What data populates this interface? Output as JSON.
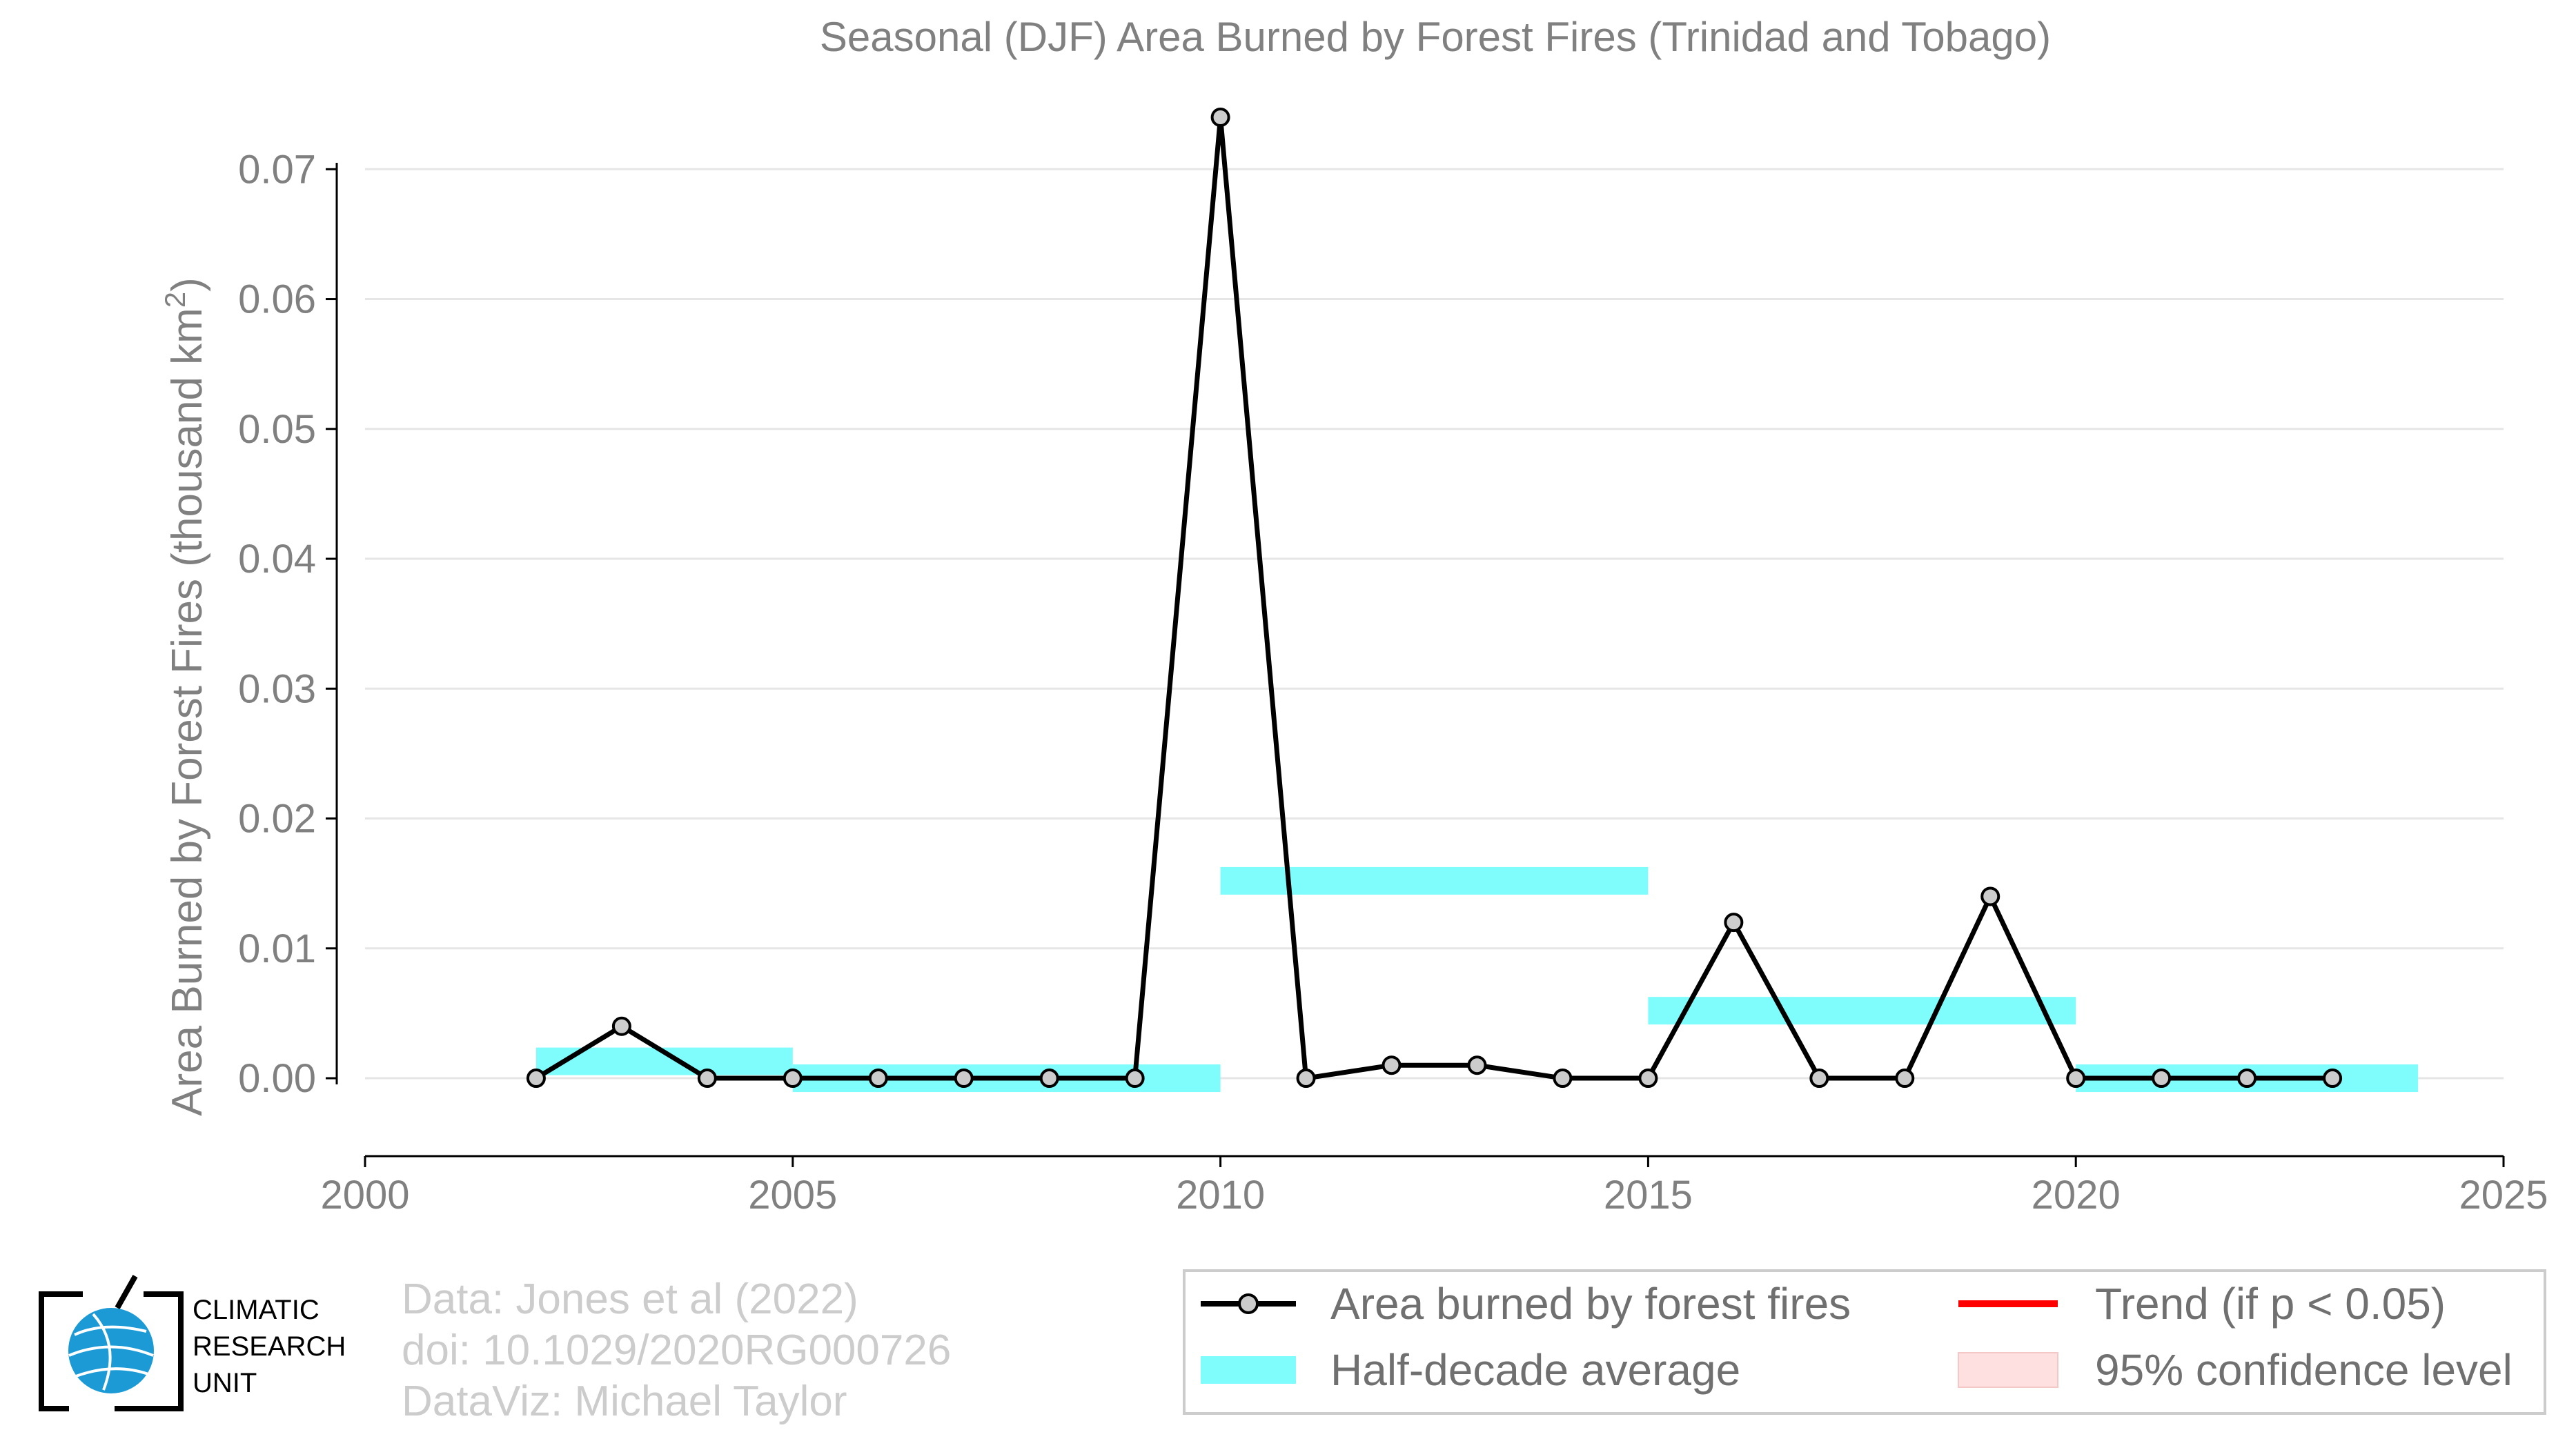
{
  "chart_data": {
    "type": "line",
    "title": "Seasonal (DJF) Area Burned by Forest Fires (Trinidad and Tobago)",
    "xlabel": "",
    "ylabel_main": "Area Burned by Forest Fires (thousand km",
    "ylabel_sup": "2",
    "ylabel_end": ")",
    "xlim": [
      2000,
      2025
    ],
    "ylim": [
      -0.006,
      0.074
    ],
    "x_ticks": [
      2000,
      2005,
      2010,
      2015,
      2020,
      2025
    ],
    "y_ticks": [
      0.0,
      0.01,
      0.02,
      0.03,
      0.04,
      0.05,
      0.06,
      0.07
    ],
    "y_tick_labels": [
      "0.00",
      "0.01",
      "0.02",
      "0.03",
      "0.04",
      "0.05",
      "0.06",
      "0.07"
    ],
    "grid": "horizontal",
    "series": [
      {
        "name": "Area burned by forest fires",
        "color": "#000000",
        "x": [
          2002,
          2003,
          2004,
          2005,
          2006,
          2007,
          2008,
          2009,
          2010,
          2011,
          2012,
          2013,
          2014,
          2015,
          2016,
          2017,
          2018,
          2019,
          2020,
          2021,
          2022,
          2023
        ],
        "y": [
          0.0,
          0.004,
          0.0,
          0.0,
          0.0,
          0.0,
          0.0,
          0.0,
          0.074,
          0.0,
          0.001,
          0.001,
          0.0,
          0.0,
          0.012,
          0.0,
          0.0,
          0.014,
          0.0,
          0.0,
          0.0,
          0.0
        ]
      }
    ],
    "half_decade_average": {
      "name": "Half-decade average",
      "color": "#7ffcfc",
      "segments": [
        {
          "x_start": 2002,
          "x_end": 2005,
          "value": 0.0013
        },
        {
          "x_start": 2005,
          "x_end": 2010,
          "value": 0.0
        },
        {
          "x_start": 2010,
          "x_end": 2015,
          "value": 0.0152
        },
        {
          "x_start": 2015,
          "x_end": 2020,
          "value": 0.0052
        },
        {
          "x_start": 2020,
          "x_end": 2024,
          "value": 0.0
        }
      ]
    },
    "legend": {
      "position": "bottom-right",
      "items": [
        {
          "label": "Area burned by forest fires",
          "kind": "line-marker",
          "color": "#000000"
        },
        {
          "label": "Trend (if p < 0.05)",
          "kind": "line",
          "color": "#ff0000"
        },
        {
          "label": "Half-decade average",
          "kind": "band",
          "color": "#7ffcfc"
        },
        {
          "label": "95% confidence level",
          "kind": "band",
          "color": "#ffe0e0"
        }
      ]
    }
  },
  "credits": [
    "Data: Jones et al (2022)",
    "doi: 10.1029/2020RG000726",
    "DataViz: Michael Taylor"
  ],
  "logo": {
    "lines": [
      "CLIMATIC",
      "RESEARCH",
      "UNIT"
    ],
    "icon": "globe-logo-icon",
    "globe_color": "#1b9ad6"
  }
}
